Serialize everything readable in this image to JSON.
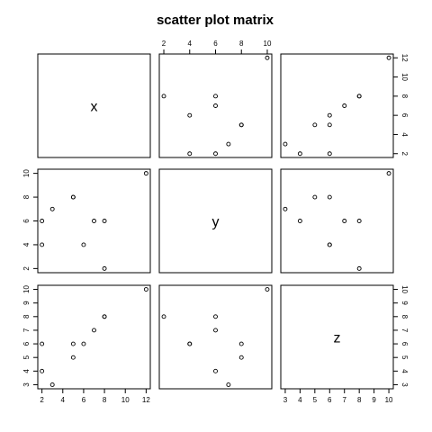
{
  "chart_data": {
    "type": "scatter",
    "title": "scatter plot matrix",
    "variables": [
      {
        "name": "x",
        "ticks": [
          2,
          4,
          6,
          8,
          10,
          12
        ],
        "range": [
          1.6,
          12.4
        ]
      },
      {
        "name": "y",
        "ticks": [
          2,
          4,
          6,
          8,
          10
        ],
        "range": [
          1.65,
          10.35
        ]
      },
      {
        "name": "z",
        "ticks": [
          3,
          4,
          5,
          6,
          7,
          8,
          9,
          10
        ],
        "range": [
          2.7,
          10.3
        ]
      }
    ],
    "points": [
      {
        "x": 12,
        "y": 10,
        "z": 10
      },
      {
        "x": 2,
        "y": 6,
        "z": 4
      },
      {
        "x": 5,
        "y": 8,
        "z": 6
      },
      {
        "x": 3,
        "y": 7,
        "z": 3
      },
      {
        "x": 8,
        "y": 2,
        "z": 8
      },
      {
        "x": 6,
        "y": 4,
        "z": 6
      },
      {
        "x": 7,
        "y": 6,
        "z": 7
      },
      {
        "x": 2,
        "y": 4,
        "z": 6
      },
      {
        "x": 5,
        "y": 8,
        "z": 5
      },
      {
        "x": 8,
        "y": 6,
        "z": 8
      }
    ],
    "grid": false,
    "legend": "none"
  }
}
